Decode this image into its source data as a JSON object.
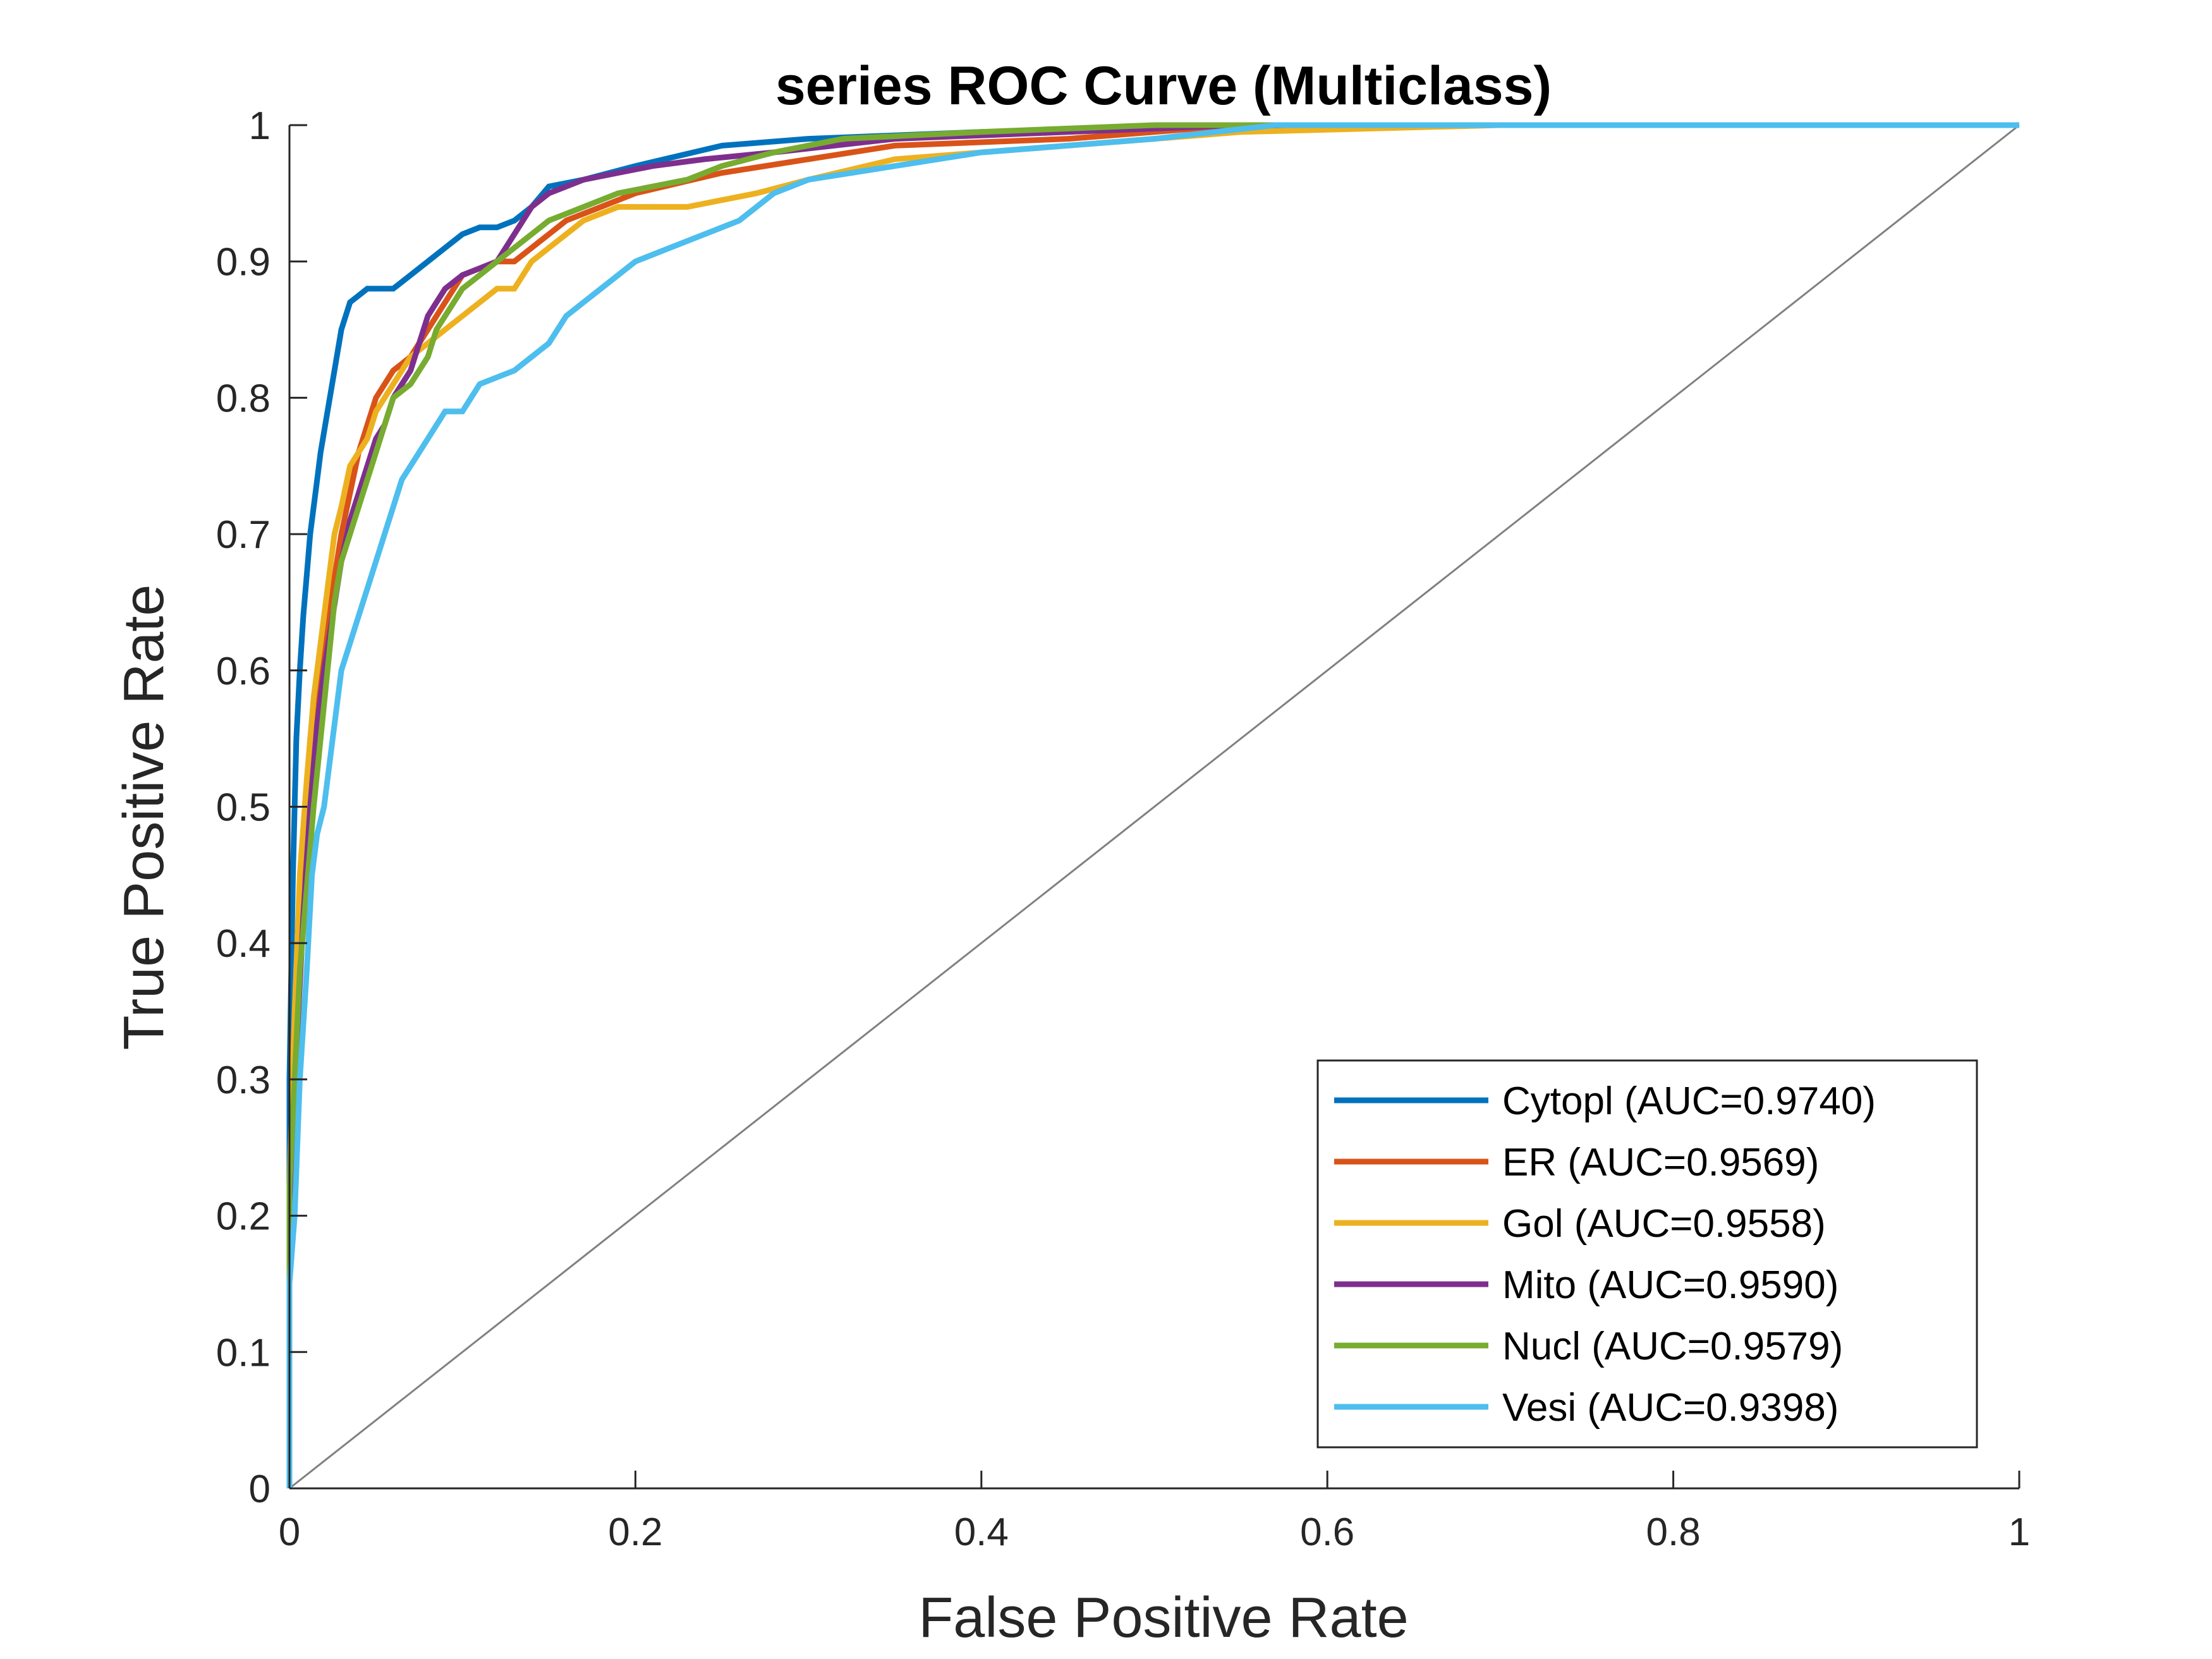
{
  "chart_data": {
    "type": "line",
    "title": "series ROC Curve (Multiclass)",
    "xlabel": "False Positive Rate",
    "ylabel": "True Positive Rate",
    "xlim": [
      0,
      1
    ],
    "ylim": [
      0,
      1
    ],
    "x_ticks": [
      "0",
      "0.2",
      "0.4",
      "0.6",
      "0.8",
      "1"
    ],
    "y_ticks": [
      "0",
      "0.1",
      "0.2",
      "0.3",
      "0.4",
      "0.5",
      "0.6",
      "0.7",
      "0.8",
      "0.9",
      "1"
    ],
    "grid": false,
    "legend_position": "bottom-right",
    "reference_line": {
      "x": [
        0,
        1
      ],
      "y": [
        0,
        1
      ],
      "color": "#808080"
    },
    "series": [
      {
        "name": "Cytopl (AUC=0.9740)",
        "color": "#0072BD",
        "x": [
          0,
          0,
          0.002,
          0.004,
          0.006,
          0.008,
          0.01,
          0.012,
          0.015,
          0.018,
          0.022,
          0.026,
          0.03,
          0.035,
          0.04,
          0.045,
          0.05,
          0.06,
          0.07,
          0.08,
          0.09,
          0.1,
          0.11,
          0.12,
          0.13,
          0.14,
          0.15,
          0.17,
          0.2,
          0.25,
          0.3,
          0.4,
          0.6,
          0.8,
          1
        ],
        "y": [
          0,
          0.3,
          0.45,
          0.55,
          0.6,
          0.64,
          0.67,
          0.7,
          0.73,
          0.76,
          0.79,
          0.82,
          0.85,
          0.87,
          0.875,
          0.88,
          0.88,
          0.88,
          0.89,
          0.9,
          0.91,
          0.92,
          0.925,
          0.925,
          0.93,
          0.94,
          0.955,
          0.96,
          0.97,
          0.985,
          0.99,
          0.995,
          1,
          1,
          1
        ]
      },
      {
        "name": "ER (AUC=0.9569)",
        "color": "#D95319",
        "x": [
          0,
          0,
          0.002,
          0.005,
          0.008,
          0.01,
          0.012,
          0.015,
          0.02,
          0.025,
          0.03,
          0.035,
          0.04,
          0.045,
          0.05,
          0.06,
          0.07,
          0.08,
          0.09,
          0.1,
          0.11,
          0.12,
          0.13,
          0.14,
          0.15,
          0.16,
          0.18,
          0.2,
          0.25,
          0.3,
          0.35,
          0.45,
          0.55,
          0.7,
          1
        ],
        "y": [
          0,
          0.2,
          0.32,
          0.4,
          0.45,
          0.5,
          0.55,
          0.58,
          0.62,
          0.66,
          0.7,
          0.73,
          0.76,
          0.78,
          0.8,
          0.82,
          0.83,
          0.85,
          0.87,
          0.89,
          0.895,
          0.9,
          0.9,
          0.91,
          0.92,
          0.93,
          0.94,
          0.95,
          0.965,
          0.975,
          0.985,
          0.99,
          1,
          1,
          1
        ]
      },
      {
        "name": "Gol (AUC=0.9558)",
        "color": "#EDB120",
        "x": [
          0,
          0,
          0.003,
          0.006,
          0.01,
          0.014,
          0.018,
          0.022,
          0.026,
          0.03,
          0.035,
          0.04,
          0.045,
          0.05,
          0.06,
          0.07,
          0.08,
          0.09,
          0.1,
          0.11,
          0.12,
          0.13,
          0.14,
          0.15,
          0.17,
          0.19,
          0.21,
          0.23,
          0.25,
          0.27,
          0.3,
          0.35,
          0.45,
          0.55,
          0.7,
          1
        ],
        "y": [
          0,
          0.22,
          0.35,
          0.45,
          0.52,
          0.58,
          0.62,
          0.66,
          0.7,
          0.72,
          0.75,
          0.76,
          0.77,
          0.79,
          0.81,
          0.83,
          0.84,
          0.85,
          0.86,
          0.87,
          0.88,
          0.88,
          0.9,
          0.91,
          0.93,
          0.94,
          0.94,
          0.94,
          0.945,
          0.95,
          0.96,
          0.975,
          0.985,
          0.995,
          1,
          1
        ]
      },
      {
        "name": "Mito (AUC=0.9590)",
        "color": "#7E2F8E",
        "x": [
          0,
          0,
          0.004,
          0.008,
          0.012,
          0.016,
          0.02,
          0.025,
          0.03,
          0.035,
          0.04,
          0.045,
          0.05,
          0.055,
          0.06,
          0.065,
          0.07,
          0.075,
          0.08,
          0.085,
          0.09,
          0.095,
          0.1,
          0.11,
          0.12,
          0.13,
          0.14,
          0.15,
          0.17,
          0.19,
          0.21,
          0.24,
          0.28,
          0.35,
          0.45,
          0.55,
          0.7,
          1
        ],
        "y": [
          0,
          0.2,
          0.32,
          0.42,
          0.5,
          0.56,
          0.6,
          0.64,
          0.68,
          0.71,
          0.73,
          0.75,
          0.77,
          0.78,
          0.8,
          0.81,
          0.82,
          0.84,
          0.86,
          0.87,
          0.88,
          0.885,
          0.89,
          0.895,
          0.9,
          0.92,
          0.94,
          0.95,
          0.96,
          0.965,
          0.97,
          0.975,
          0.98,
          0.99,
          0.995,
          1,
          1,
          1
        ]
      },
      {
        "name": "Nucl (AUC=0.9579)",
        "color": "#77AC30",
        "x": [
          0,
          0,
          0.003,
          0.006,
          0.01,
          0.014,
          0.018,
          0.022,
          0.026,
          0.03,
          0.035,
          0.04,
          0.045,
          0.05,
          0.055,
          0.06,
          0.07,
          0.08,
          0.085,
          0.09,
          0.1,
          0.11,
          0.12,
          0.13,
          0.14,
          0.15,
          0.17,
          0.19,
          0.21,
          0.23,
          0.25,
          0.28,
          0.32,
          0.4,
          0.5,
          0.57,
          0.7,
          1
        ],
        "y": [
          0,
          0.22,
          0.3,
          0.38,
          0.44,
          0.5,
          0.55,
          0.6,
          0.65,
          0.68,
          0.7,
          0.72,
          0.74,
          0.76,
          0.78,
          0.8,
          0.81,
          0.83,
          0.85,
          0.86,
          0.88,
          0.89,
          0.9,
          0.91,
          0.92,
          0.93,
          0.94,
          0.95,
          0.955,
          0.96,
          0.97,
          0.98,
          0.99,
          0.995,
          1,
          1,
          1,
          1
        ]
      },
      {
        "name": "Vesi (AUC=0.9398)",
        "color": "#4DBEEE",
        "x": [
          0,
          0,
          0.003,
          0.006,
          0.01,
          0.013,
          0.016,
          0.02,
          0.025,
          0.03,
          0.035,
          0.04,
          0.045,
          0.05,
          0.055,
          0.06,
          0.065,
          0.07,
          0.08,
          0.09,
          0.1,
          0.11,
          0.12,
          0.13,
          0.14,
          0.15,
          0.16,
          0.17,
          0.18,
          0.19,
          0.2,
          0.22,
          0.24,
          0.26,
          0.28,
          0.3,
          0.35,
          0.4,
          0.5,
          0.57,
          0.7,
          1
        ],
        "y": [
          0,
          0.15,
          0.2,
          0.3,
          0.38,
          0.45,
          0.48,
          0.5,
          0.55,
          0.6,
          0.62,
          0.64,
          0.66,
          0.68,
          0.7,
          0.72,
          0.74,
          0.75,
          0.77,
          0.79,
          0.79,
          0.81,
          0.815,
          0.82,
          0.83,
          0.84,
          0.86,
          0.87,
          0.88,
          0.89,
          0.9,
          0.91,
          0.92,
          0.93,
          0.95,
          0.96,
          0.97,
          0.98,
          0.99,
          1,
          1,
          1
        ]
      }
    ]
  }
}
